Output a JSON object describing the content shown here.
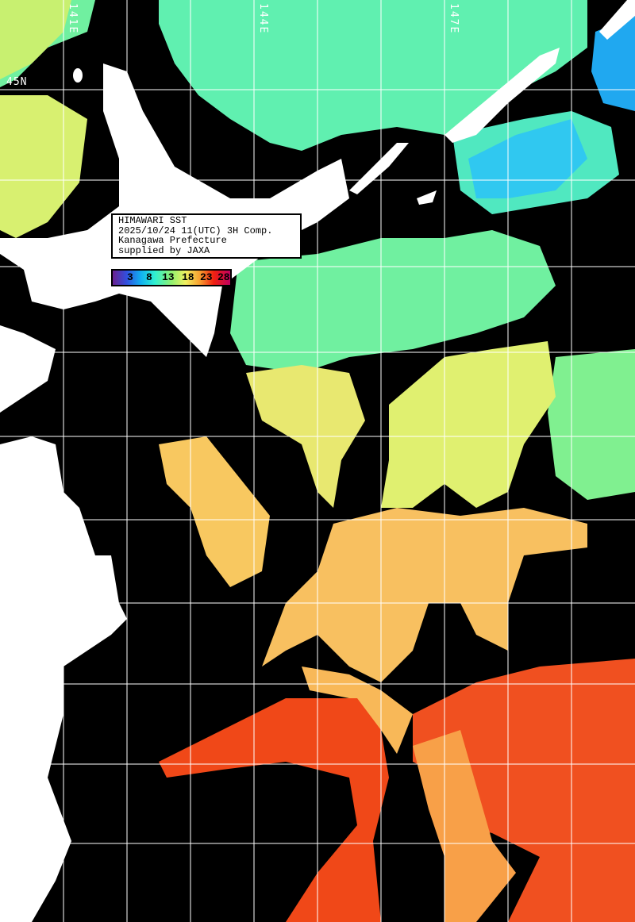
{
  "info": {
    "title": "HIMAWARI SST",
    "datetime": "2025/10/24 11(UTC) 3H Comp.",
    "region": "Kanagawa Prefecture",
    "credit": "supplied by JAXA"
  },
  "colorbar": {
    "labels": [
      "3",
      "8",
      "13",
      "18",
      "23",
      "28"
    ],
    "unit_range_min": 3,
    "unit_range_max": 28,
    "colors": [
      "#6a2090",
      "#10b0f0",
      "#30f0d0",
      "#90f070",
      "#f0f060",
      "#f8a030",
      "#f02010",
      "#c00060"
    ]
  },
  "axes": {
    "longitude_labels": [
      "141E",
      "144E",
      "147E"
    ],
    "latitude_labels": [
      "45N"
    ]
  },
  "colors": {
    "land": "#ffffff",
    "no_data": "#000000",
    "grid": "#ffffff",
    "cold": "#20a8f0",
    "cool": "#60f0b0",
    "mild": "#e8f070",
    "warm": "#f8c060",
    "hot": "#f04818"
  }
}
